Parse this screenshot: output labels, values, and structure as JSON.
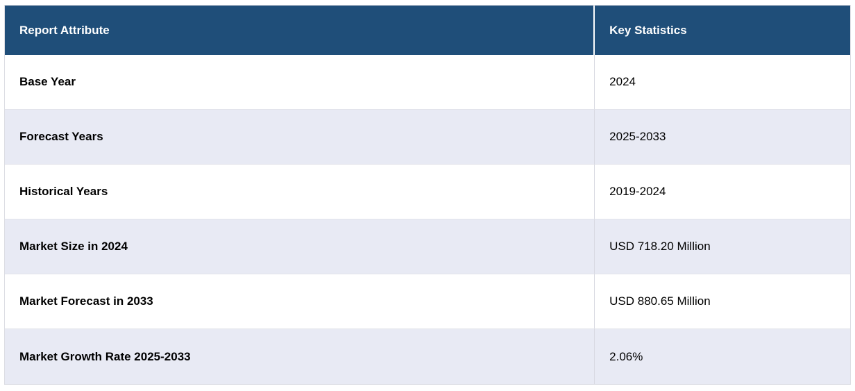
{
  "table": {
    "header": {
      "col1": "Report Attribute",
      "col2": "Key Statistics"
    },
    "rows": [
      {
        "attribute": "Base Year",
        "value": "2024"
      },
      {
        "attribute": "Forecast Years",
        "value": "2025-2033"
      },
      {
        "attribute": "Historical Years",
        "value": "2019-2024"
      },
      {
        "attribute": "Market Size in 2024",
        "value": "USD 718.20 Million"
      },
      {
        "attribute": "Market Forecast in 2033",
        "value": "USD 880.65 Million"
      },
      {
        "attribute": "Market Growth Rate 2025-2033",
        "value": "2.06%"
      }
    ]
  },
  "colors": {
    "header_bg": "#1f4e79",
    "header_text": "#ffffff",
    "stripe_bg": "#e8eaf4",
    "row_bg": "#ffffff",
    "body_text": "#000000",
    "divider": "#d8d9e1"
  },
  "chart_data": {
    "type": "table",
    "columns": [
      "Report Attribute",
      "Key Statistics"
    ],
    "rows": [
      [
        "Base Year",
        "2024"
      ],
      [
        "Forecast Years",
        "2025-2033"
      ],
      [
        "Historical Years",
        "2019-2024"
      ],
      [
        "Market Size in 2024",
        "USD 718.20 Million"
      ],
      [
        "Market Forecast in 2033",
        "USD 880.65 Million"
      ],
      [
        "Market Growth Rate 2025-2033",
        "2.06%"
      ]
    ]
  }
}
